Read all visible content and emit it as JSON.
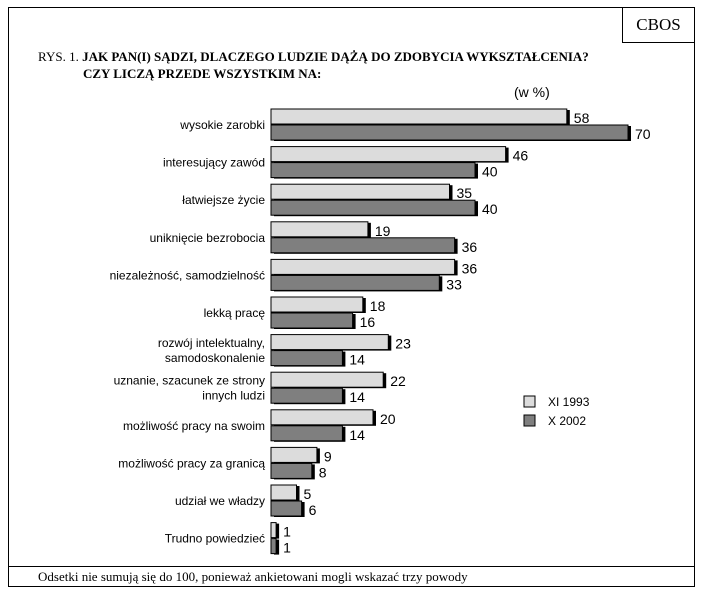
{
  "brand": "CBOS",
  "title": {
    "label": "RYS. 1.",
    "question": "JAK PAN(I) SĄDZI, DLACZEGO LUDZIE DĄŻĄ DO ZDOBYCIA WYKSZTAŁCENIA?",
    "line2": "CZY LICZĄ PRZEDE WSZYSTKIM NA:"
  },
  "unit": "(w %)",
  "footnote": "Odsetki nie sumują się do 100, ponieważ ankietowani mogli wskazać trzy powody",
  "chart_data": {
    "type": "bar",
    "orientation": "horizontal",
    "categories": [
      [
        "wysokie zarobki"
      ],
      [
        "interesujący zawód"
      ],
      [
        "łatwiejsze życie"
      ],
      [
        "uniknięcie bezrobocia"
      ],
      [
        "niezależność, samodzielność"
      ],
      [
        "lekką pracę"
      ],
      [
        "rozwój intelektualny,",
        "samodoskonalenie"
      ],
      [
        "uznanie, szacunek ze strony",
        "innych ludzi"
      ],
      [
        "możliwość pracy na swoim"
      ],
      [
        "możliwość pracy za granicą"
      ],
      [
        "udział we władzy"
      ],
      [
        "Trudno powiedzieć"
      ]
    ],
    "series": [
      {
        "name": "XI 1993",
        "color": "#dcdcdc",
        "values": [
          58,
          46,
          35,
          19,
          36,
          18,
          23,
          22,
          20,
          9,
          5,
          1
        ]
      },
      {
        "name": "X 2002",
        "color": "#7f7f7f",
        "values": [
          70,
          40,
          40,
          36,
          33,
          16,
          14,
          14,
          14,
          8,
          6,
          1
        ]
      }
    ],
    "xlim": [
      0,
      70
    ],
    "legend_position": "right"
  }
}
